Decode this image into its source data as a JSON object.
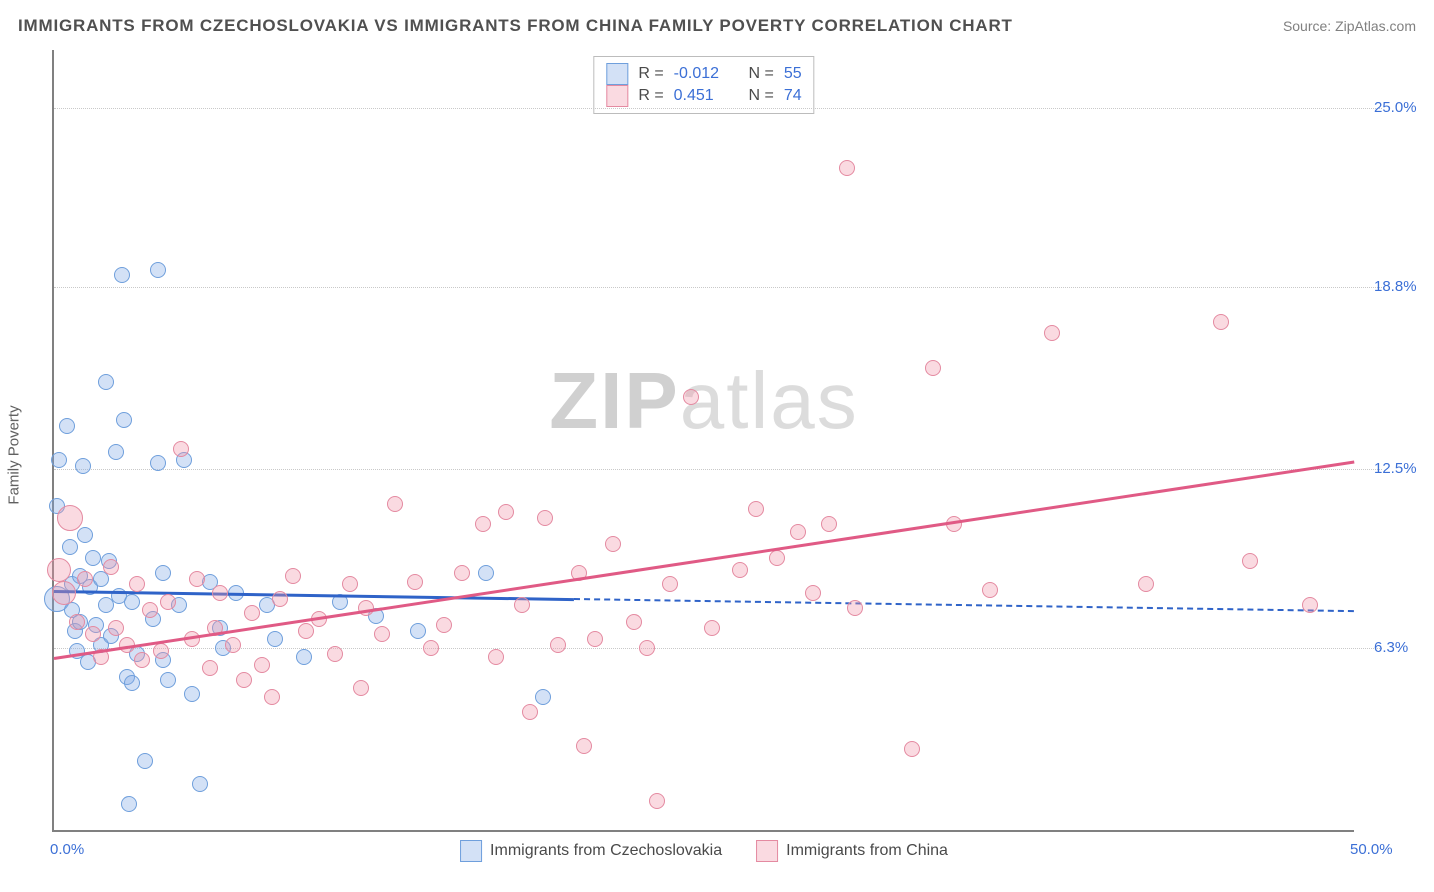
{
  "title": "IMMIGRANTS FROM CZECHOSLOVAKIA VS IMMIGRANTS FROM CHINA FAMILY POVERTY CORRELATION CHART",
  "source": "Source: ZipAtlas.com",
  "ylabel": "Family Poverty",
  "watermark_a": "ZIP",
  "watermark_b": "atlas",
  "chart": {
    "type": "scatter",
    "xlim": [
      0,
      50
    ],
    "ylim": [
      0,
      27
    ],
    "xticks": [
      {
        "v": 0,
        "label": "0.0%"
      },
      {
        "v": 50,
        "label": "50.0%"
      }
    ],
    "yticks": [
      {
        "v": 6.3,
        "label": "6.3%"
      },
      {
        "v": 12.5,
        "label": "12.5%"
      },
      {
        "v": 18.8,
        "label": "18.8%"
      },
      {
        "v": 25.0,
        "label": "25.0%"
      }
    ],
    "background_color": "#ffffff",
    "grid_color": "#c9c9c9",
    "series": [
      {
        "name": "Immigrants from Czechoslovakia",
        "fill": "rgba(130,170,230,0.35)",
        "stroke": "#6f9fdc",
        "trend_color": "#2f63c8",
        "R": "-0.012",
        "N": "55",
        "trend": {
          "x0": 0,
          "y0": 8.3,
          "x1": 50,
          "y1": 7.6,
          "solid_until": 20
        },
        "points": [
          {
            "x": 0.1,
            "y": 11.2,
            "r": 7
          },
          {
            "x": 0.1,
            "y": 8.0,
            "r": 12
          },
          {
            "x": 0.2,
            "y": 12.8,
            "r": 7
          },
          {
            "x": 0.5,
            "y": 14.0,
            "r": 7
          },
          {
            "x": 0.6,
            "y": 9.8,
            "r": 7
          },
          {
            "x": 0.7,
            "y": 8.5,
            "r": 7
          },
          {
            "x": 0.7,
            "y": 7.6,
            "r": 7
          },
          {
            "x": 0.8,
            "y": 6.9,
            "r": 7
          },
          {
            "x": 0.9,
            "y": 6.2,
            "r": 7
          },
          {
            "x": 1.0,
            "y": 8.8,
            "r": 7
          },
          {
            "x": 1.0,
            "y": 7.2,
            "r": 7
          },
          {
            "x": 1.1,
            "y": 12.6,
            "r": 7
          },
          {
            "x": 1.2,
            "y": 10.2,
            "r": 7
          },
          {
            "x": 1.3,
            "y": 5.8,
            "r": 7
          },
          {
            "x": 1.4,
            "y": 8.4,
            "r": 7
          },
          {
            "x": 1.5,
            "y": 9.4,
            "r": 7
          },
          {
            "x": 1.6,
            "y": 7.1,
            "r": 7
          },
          {
            "x": 1.8,
            "y": 6.4,
            "r": 7
          },
          {
            "x": 1.8,
            "y": 8.7,
            "r": 7
          },
          {
            "x": 2.0,
            "y": 15.5,
            "r": 7
          },
          {
            "x": 2.0,
            "y": 7.8,
            "r": 7
          },
          {
            "x": 2.1,
            "y": 9.3,
            "r": 7
          },
          {
            "x": 2.2,
            "y": 6.7,
            "r": 7
          },
          {
            "x": 2.4,
            "y": 13.1,
            "r": 7
          },
          {
            "x": 2.5,
            "y": 8.1,
            "r": 7
          },
          {
            "x": 2.6,
            "y": 19.2,
            "r": 7
          },
          {
            "x": 2.7,
            "y": 14.2,
            "r": 7
          },
          {
            "x": 2.8,
            "y": 5.3,
            "r": 7
          },
          {
            "x": 2.9,
            "y": 0.9,
            "r": 7
          },
          {
            "x": 3.0,
            "y": 5.1,
            "r": 7
          },
          {
            "x": 3.0,
            "y": 7.9,
            "r": 7
          },
          {
            "x": 3.2,
            "y": 6.1,
            "r": 7
          },
          {
            "x": 3.5,
            "y": 2.4,
            "r": 7
          },
          {
            "x": 3.8,
            "y": 7.3,
            "r": 7
          },
          {
            "x": 4.0,
            "y": 19.4,
            "r": 7
          },
          {
            "x": 4.0,
            "y": 12.7,
            "r": 7
          },
          {
            "x": 4.2,
            "y": 8.9,
            "r": 7
          },
          {
            "x": 4.2,
            "y": 5.9,
            "r": 7
          },
          {
            "x": 4.4,
            "y": 5.2,
            "r": 7
          },
          {
            "x": 4.8,
            "y": 7.8,
            "r": 7
          },
          {
            "x": 5.0,
            "y": 12.8,
            "r": 7
          },
          {
            "x": 5.3,
            "y": 4.7,
            "r": 7
          },
          {
            "x": 5.6,
            "y": 1.6,
            "r": 7
          },
          {
            "x": 6.0,
            "y": 8.6,
            "r": 7
          },
          {
            "x": 6.4,
            "y": 7.0,
            "r": 7
          },
          {
            "x": 6.5,
            "y": 6.3,
            "r": 7
          },
          {
            "x": 7.0,
            "y": 8.2,
            "r": 7
          },
          {
            "x": 8.2,
            "y": 7.8,
            "r": 7
          },
          {
            "x": 8.5,
            "y": 6.6,
            "r": 7
          },
          {
            "x": 9.6,
            "y": 6.0,
            "r": 7
          },
          {
            "x": 11.0,
            "y": 7.9,
            "r": 7
          },
          {
            "x": 12.4,
            "y": 7.4,
            "r": 7
          },
          {
            "x": 14.0,
            "y": 6.9,
            "r": 7
          },
          {
            "x": 16.6,
            "y": 8.9,
            "r": 7
          },
          {
            "x": 18.8,
            "y": 4.6,
            "r": 7
          }
        ]
      },
      {
        "name": "Immigrants from China",
        "fill": "rgba(240,150,170,0.35)",
        "stroke": "#e48aa1",
        "trend_color": "#e05a85",
        "R": "0.451",
        "N": "74",
        "trend": {
          "x0": 0,
          "y0": 6.0,
          "x1": 50,
          "y1": 12.8,
          "solid_until": 50
        },
        "points": [
          {
            "x": 0.2,
            "y": 9.0,
            "r": 11
          },
          {
            "x": 0.4,
            "y": 8.2,
            "r": 11
          },
          {
            "x": 0.6,
            "y": 10.8,
            "r": 12
          },
          {
            "x": 0.9,
            "y": 7.2,
            "r": 7
          },
          {
            "x": 1.2,
            "y": 8.7,
            "r": 7
          },
          {
            "x": 1.5,
            "y": 6.8,
            "r": 7
          },
          {
            "x": 1.8,
            "y": 6.0,
            "r": 7
          },
          {
            "x": 2.2,
            "y": 9.1,
            "r": 7
          },
          {
            "x": 2.4,
            "y": 7.0,
            "r": 7
          },
          {
            "x": 2.8,
            "y": 6.4,
            "r": 7
          },
          {
            "x": 3.2,
            "y": 8.5,
            "r": 7
          },
          {
            "x": 3.4,
            "y": 5.9,
            "r": 7
          },
          {
            "x": 3.7,
            "y": 7.6,
            "r": 7
          },
          {
            "x": 4.1,
            "y": 6.2,
            "r": 7
          },
          {
            "x": 4.4,
            "y": 7.9,
            "r": 7
          },
          {
            "x": 4.9,
            "y": 13.2,
            "r": 7
          },
          {
            "x": 5.3,
            "y": 6.6,
            "r": 7
          },
          {
            "x": 5.5,
            "y": 8.7,
            "r": 7
          },
          {
            "x": 6.0,
            "y": 5.6,
            "r": 7
          },
          {
            "x": 6.2,
            "y": 7.0,
            "r": 7
          },
          {
            "x": 6.4,
            "y": 8.2,
            "r": 7
          },
          {
            "x": 6.9,
            "y": 6.4,
            "r": 7
          },
          {
            "x": 7.3,
            "y": 5.2,
            "r": 7
          },
          {
            "x": 7.6,
            "y": 7.5,
            "r": 7
          },
          {
            "x": 8.0,
            "y": 5.7,
            "r": 7
          },
          {
            "x": 8.4,
            "y": 4.6,
            "r": 7
          },
          {
            "x": 8.7,
            "y": 8.0,
            "r": 7
          },
          {
            "x": 9.2,
            "y": 8.8,
            "r": 7
          },
          {
            "x": 9.7,
            "y": 6.9,
            "r": 7
          },
          {
            "x": 10.2,
            "y": 7.3,
            "r": 7
          },
          {
            "x": 10.8,
            "y": 6.1,
            "r": 7
          },
          {
            "x": 11.4,
            "y": 8.5,
            "r": 7
          },
          {
            "x": 11.8,
            "y": 4.9,
            "r": 7
          },
          {
            "x": 12.0,
            "y": 7.7,
            "r": 7
          },
          {
            "x": 12.6,
            "y": 6.8,
            "r": 7
          },
          {
            "x": 13.1,
            "y": 11.3,
            "r": 7
          },
          {
            "x": 13.9,
            "y": 8.6,
            "r": 7
          },
          {
            "x": 14.5,
            "y": 6.3,
            "r": 7
          },
          {
            "x": 15.0,
            "y": 7.1,
            "r": 7
          },
          {
            "x": 15.7,
            "y": 8.9,
            "r": 7
          },
          {
            "x": 16.5,
            "y": 10.6,
            "r": 7
          },
          {
            "x": 17.0,
            "y": 6.0,
            "r": 7
          },
          {
            "x": 17.4,
            "y": 11.0,
            "r": 7
          },
          {
            "x": 18.0,
            "y": 7.8,
            "r": 7
          },
          {
            "x": 18.3,
            "y": 4.1,
            "r": 7
          },
          {
            "x": 18.9,
            "y": 10.8,
            "r": 7
          },
          {
            "x": 19.4,
            "y": 6.4,
            "r": 7
          },
          {
            "x": 20.2,
            "y": 8.9,
            "r": 7
          },
          {
            "x": 20.4,
            "y": 2.9,
            "r": 7
          },
          {
            "x": 20.8,
            "y": 6.6,
            "r": 7
          },
          {
            "x": 21.5,
            "y": 9.9,
            "r": 7
          },
          {
            "x": 22.3,
            "y": 7.2,
            "r": 7
          },
          {
            "x": 22.8,
            "y": 6.3,
            "r": 7
          },
          {
            "x": 23.2,
            "y": 1.0,
            "r": 7
          },
          {
            "x": 23.7,
            "y": 8.5,
            "r": 7
          },
          {
            "x": 24.5,
            "y": 15.0,
            "r": 7
          },
          {
            "x": 25.3,
            "y": 7.0,
            "r": 7
          },
          {
            "x": 26.4,
            "y": 9.0,
            "r": 7
          },
          {
            "x": 27.0,
            "y": 11.1,
            "r": 7
          },
          {
            "x": 27.8,
            "y": 9.4,
            "r": 7
          },
          {
            "x": 28.6,
            "y": 10.3,
            "r": 7
          },
          {
            "x": 29.2,
            "y": 8.2,
            "r": 7
          },
          {
            "x": 29.8,
            "y": 10.6,
            "r": 7
          },
          {
            "x": 30.5,
            "y": 22.9,
            "r": 7
          },
          {
            "x": 30.8,
            "y": 7.7,
            "r": 7
          },
          {
            "x": 33.0,
            "y": 2.8,
            "r": 7
          },
          {
            "x": 33.8,
            "y": 16.0,
            "r": 7
          },
          {
            "x": 34.6,
            "y": 10.6,
            "r": 7
          },
          {
            "x": 36.0,
            "y": 8.3,
            "r": 7
          },
          {
            "x": 38.4,
            "y": 17.2,
            "r": 7
          },
          {
            "x": 42.0,
            "y": 8.5,
            "r": 7
          },
          {
            "x": 44.9,
            "y": 17.6,
            "r": 7
          },
          {
            "x": 46.0,
            "y": 9.3,
            "r": 7
          },
          {
            "x": 48.3,
            "y": 7.8,
            "r": 7
          }
        ]
      }
    ]
  }
}
